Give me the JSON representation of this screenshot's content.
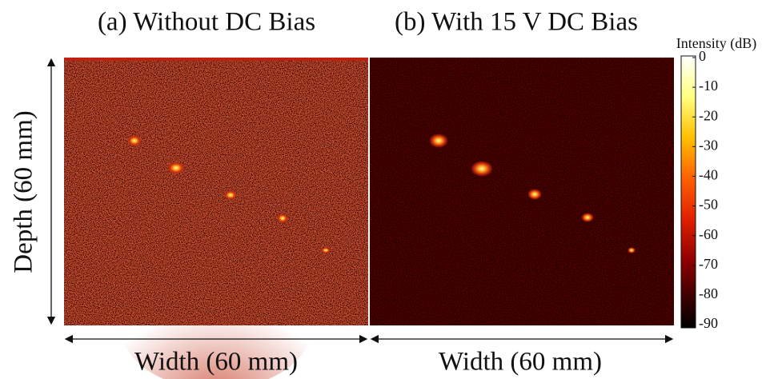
{
  "panels": [
    {
      "title": "(a) Without DC Bias",
      "x_label": "Width (60 mm)"
    },
    {
      "title": "(b) With 15 V DC Bias",
      "x_label": "Width (60 mm)"
    }
  ],
  "y_label": "Depth (60 mm)",
  "colorbar": {
    "label": "Intensity (dB)",
    "lim": [
      -90,
      0
    ],
    "ticks": [
      0,
      -10,
      -20,
      -30,
      -40,
      -50,
      -60,
      -70,
      -80,
      -90
    ]
  }
}
